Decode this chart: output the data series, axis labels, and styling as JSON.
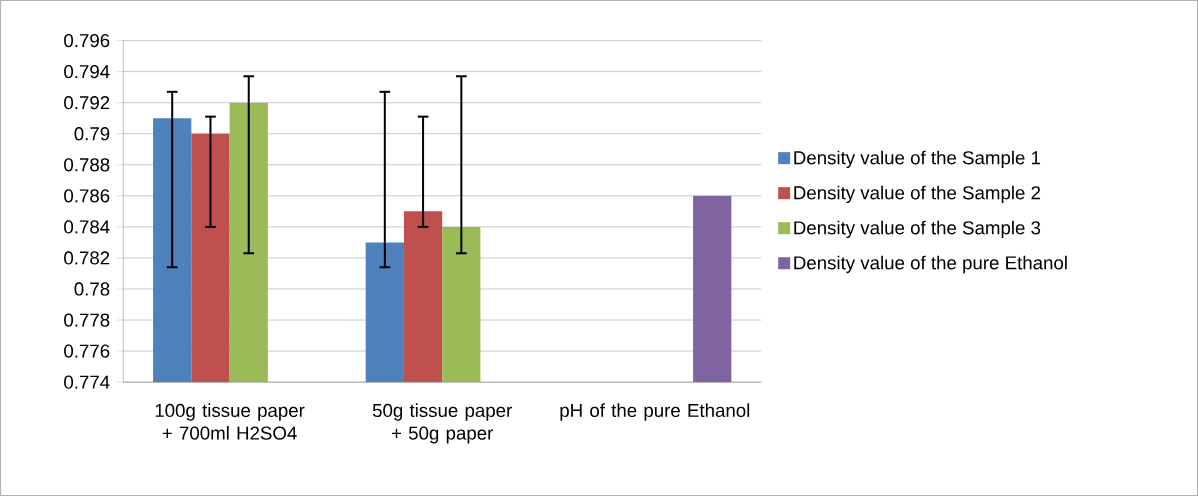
{
  "chart_data": {
    "type": "bar",
    "categories": [
      "100g tissue paper + 700ml H2SO4",
      "50g tissue paper + 50g paper",
      "pH of the pure Ethanol"
    ],
    "series": [
      {
        "name": "Density value of the Sample 1",
        "color": "#4f81bd",
        "values": [
          0.791,
          0.783,
          null
        ],
        "errors": [
          [
            0.7814,
            0.7927
          ],
          [
            0.7814,
            0.7927
          ],
          null
        ]
      },
      {
        "name": "Density value of the Sample 2",
        "color": "#c0504d",
        "values": [
          0.79,
          0.785,
          null
        ],
        "errors": [
          [
            0.784,
            0.7911
          ],
          [
            0.784,
            0.7911
          ],
          null
        ]
      },
      {
        "name": "Density value of the Sample 3",
        "color": "#9bbb59",
        "values": [
          0.792,
          0.784,
          null
        ],
        "errors": [
          [
            0.7823,
            0.7937
          ],
          [
            0.7823,
            0.7937
          ],
          null
        ]
      },
      {
        "name": "Density value of the pure Ethanol",
        "color": "#8064a2",
        "values": [
          null,
          null,
          0.786
        ]
      }
    ],
    "ylim": [
      0.774,
      0.796
    ],
    "yticks": [
      0.774,
      0.776,
      0.778,
      0.78,
      0.782,
      0.784,
      0.786,
      0.788,
      0.79,
      0.792,
      0.794,
      0.796
    ],
    "grid": "y",
    "legend": "right"
  }
}
